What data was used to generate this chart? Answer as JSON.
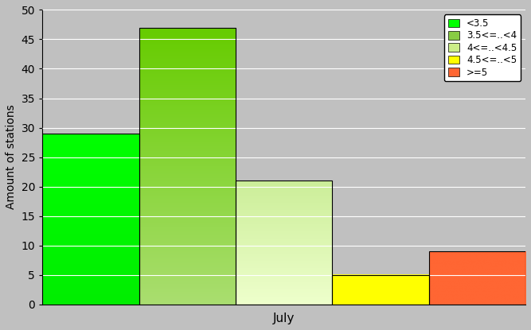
{
  "bars": [
    {
      "label": "<3.5",
      "value": 29,
      "color_top": "#00FF00",
      "color_bot": "#00EE00"
    },
    {
      "label": "3.5<=..<4",
      "value": 47,
      "color_top": "#66CC00",
      "color_bot": "#AADE70"
    },
    {
      "label": "4<=..<4.5",
      "value": 21,
      "color_top": "#CCEE99",
      "color_bot": "#EEFFCC"
    },
    {
      "label": "4.5<=..<5",
      "value": 5,
      "color_top": "#FFFF00",
      "color_bot": "#FFFF00"
    },
    {
      "label": ">=5",
      "value": 9,
      "color_top": "#FF6633",
      "color_bot": "#FF6633"
    }
  ],
  "legend_colors": [
    "#00FF00",
    "#88CC44",
    "#CCEE88",
    "#FFFF00",
    "#FF6633"
  ],
  "ylabel": "Amount of stations",
  "xlabel": "July",
  "ylim": [
    0,
    50
  ],
  "yticks": [
    0,
    5,
    10,
    15,
    20,
    25,
    30,
    35,
    40,
    45,
    50
  ],
  "background_color": "#C0C0C0",
  "grid_color": "#FFFFFF"
}
